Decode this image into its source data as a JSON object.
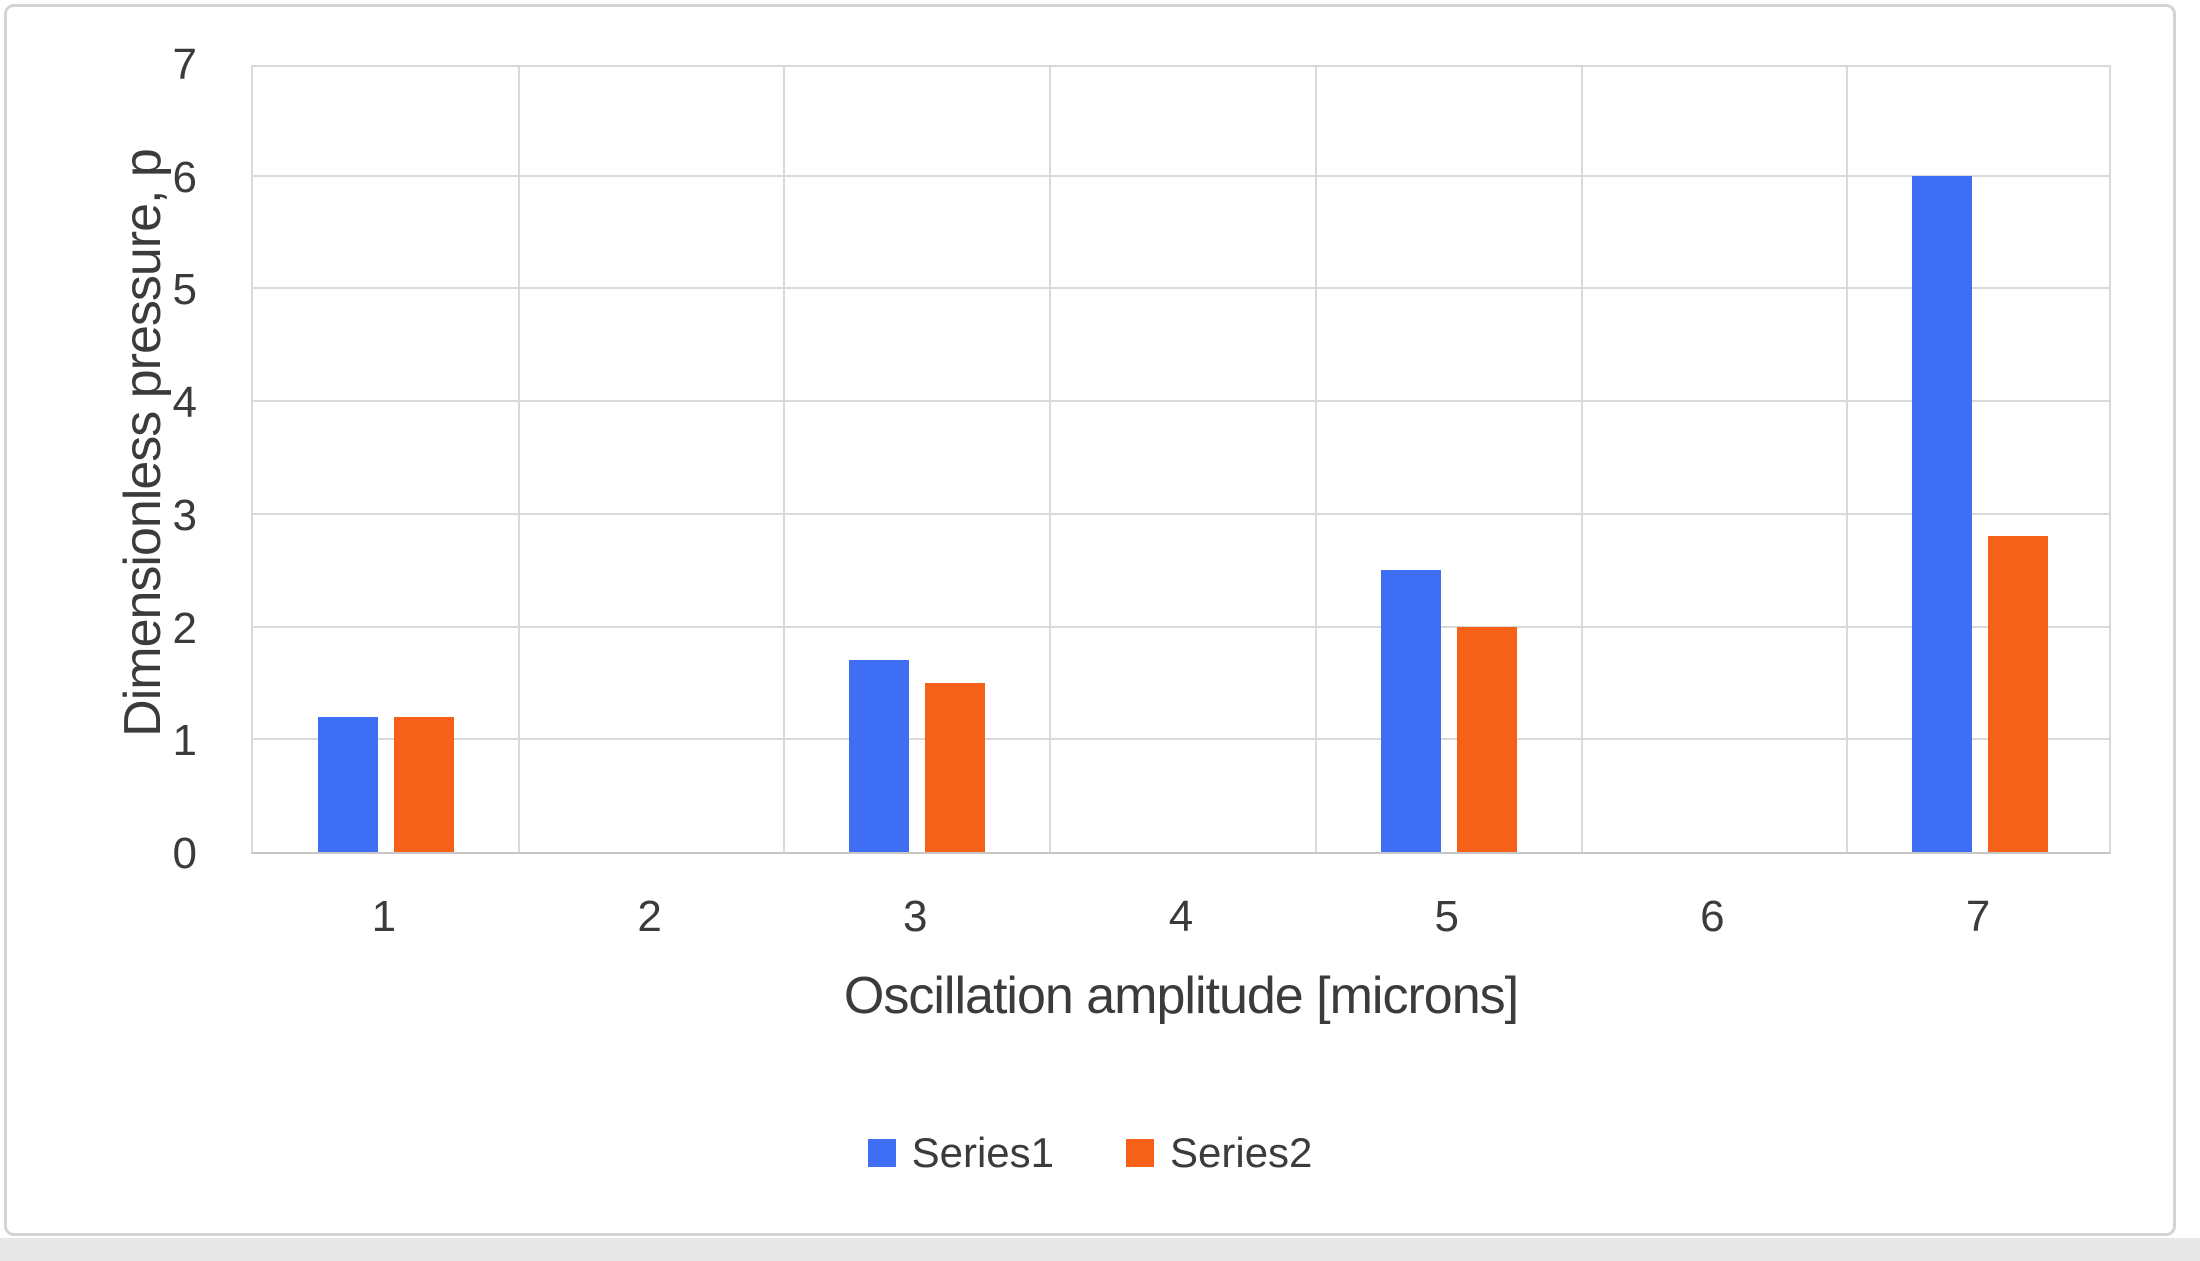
{
  "chart_data": {
    "type": "bar",
    "categories": [
      "1",
      "2",
      "3",
      "4",
      "5",
      "6",
      "7"
    ],
    "series": [
      {
        "name": "Series1",
        "color": "#3d6ef4",
        "values": [
          1.2,
          0,
          1.7,
          0,
          2.5,
          0,
          6.0
        ]
      },
      {
        "name": "Series2",
        "color": "#f6611a",
        "values": [
          1.2,
          0,
          1.5,
          0,
          2.0,
          0,
          2.8
        ]
      }
    ],
    "title": "",
    "xlabel": "Oscillation amplitude [microns]",
    "ylabel": "Dimensionless pressure, p",
    "ylim": [
      0,
      7
    ],
    "yticks": [
      0,
      1,
      2,
      3,
      4,
      5,
      6,
      7
    ],
    "grid": true,
    "legend_position": "bottom"
  },
  "colors": {
    "gridline": "#d9d9d9",
    "axis_line": "#c6c6c6",
    "text": "#3b3b3b",
    "frame_border": "#d4d4d4",
    "background": "#ffffff",
    "bottom_strip": "#e8e8e8"
  }
}
